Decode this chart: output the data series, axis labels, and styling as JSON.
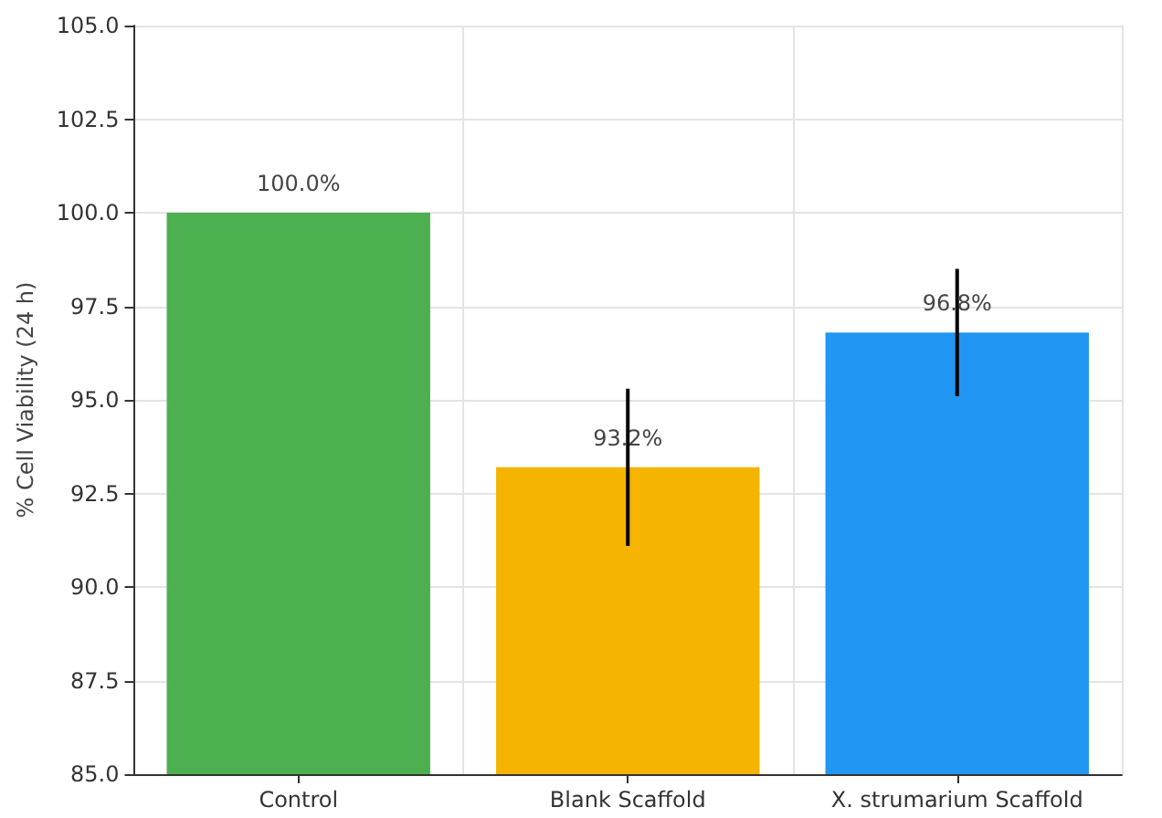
{
  "chart_data": {
    "type": "bar",
    "ylabel": "% Cell Viability (24 h)",
    "categories": [
      "Control",
      "Blank Scaffold",
      "X. strumarium Scaffold"
    ],
    "values": [
      100.0,
      93.2,
      96.8
    ],
    "colors": [
      "#4caf50",
      "#f4b400",
      "#2196f3"
    ],
    "errors": [
      null,
      2.1,
      1.7
    ],
    "value_labels": [
      "100.0%",
      "93.2%",
      "96.8%"
    ],
    "ylim": [
      85,
      105
    ],
    "yticks": [
      {
        "value": 85,
        "label": "85.0"
      },
      {
        "value": 87.5,
        "label": "87.5"
      },
      {
        "value": 90,
        "label": "90.0"
      },
      {
        "value": 92.5,
        "label": "92.5"
      },
      {
        "value": 95,
        "label": "95.0"
      },
      {
        "value": 97.5,
        "label": "97.5"
      },
      {
        "value": 100,
        "label": "100.0"
      },
      {
        "value": 102.5,
        "label": "102.5"
      },
      {
        "value": 105,
        "label": "105.0"
      }
    ],
    "grid": true
  }
}
